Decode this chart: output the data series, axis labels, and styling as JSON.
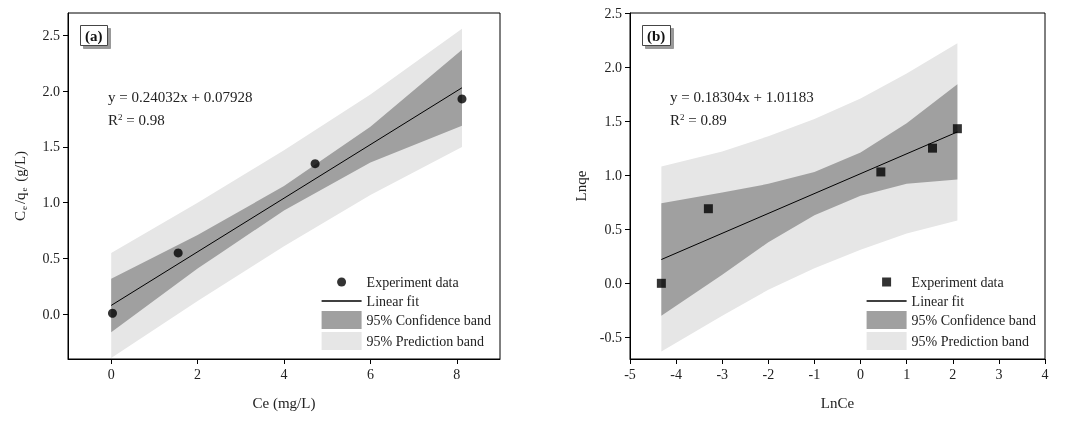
{
  "chart_data": [
    {
      "type": "scatter",
      "title": "(a)",
      "xlabel": "Ce (mg/L)",
      "ylabel": "C$_{e}$/q$_{e}$ (g/L)",
      "xlim": [
        -1,
        9
      ],
      "xticks": [
        0,
        2,
        4,
        6,
        8
      ],
      "ylim": [
        -0.4,
        2.7
      ],
      "yticks": [
        {
          "value": 0,
          "label": "0.0"
        },
        0.5,
        {
          "value": 1,
          "label": "1.0"
        },
        1.5,
        {
          "value": 2,
          "label": "2.0"
        },
        2.5
      ],
      "grid": false,
      "legend": "bottom right",
      "marker": "circle",
      "annotations": [
        "y = 0.24032x + 0.07928",
        "R$^{2}$ = 0.98"
      ],
      "series": [
        {
          "name": "Experiment data",
          "color": "#000000",
          "x": [
            0.03,
            1.55,
            4.72,
            8.12
          ],
          "values": [
            0.01,
            0.55,
            1.35,
            1.93
          ]
        },
        {
          "name": "Linear fit",
          "type": "line",
          "marker": "none",
          "color": "#000000",
          "x": [
            0,
            8.12
          ],
          "values": [
            0.08,
            2.03
          ]
        },
        {
          "name": "95% Confidence band",
          "type": "line",
          "marker": "none",
          "color": "#a0a0a0",
          "x": [
            0,
            2,
            4,
            6,
            8.12
          ],
          "values": [
            null,
            null,
            null,
            null,
            null
          ],
          "lower": [
            -0.16,
            0.41,
            0.93,
            1.36,
            1.69
          ],
          "upper": [
            0.32,
            0.71,
            1.15,
            1.68,
            2.37
          ]
        },
        {
          "name": "95% Prediction band",
          "type": "line",
          "marker": "none",
          "color": "#e6e6e6",
          "x": [
            0,
            2,
            4,
            6,
            8.12
          ],
          "values": [
            null,
            null,
            null,
            null,
            null
          ],
          "lower": [
            -0.39,
            0.12,
            0.61,
            1.07,
            1.5
          ],
          "upper": [
            0.55,
            1.0,
            1.47,
            1.97,
            2.56
          ]
        }
      ]
    },
    {
      "type": "scatter",
      "title": "(b)",
      "xlabel": "LnCe",
      "ylabel": "Lnqe",
      "xlim": [
        -5,
        4
      ],
      "xticks": [
        -5,
        -4,
        -3,
        -2,
        -1,
        0,
        1,
        2,
        3,
        4
      ],
      "ylim": [
        -0.7,
        2.5
      ],
      "yticks": [
        -0.5,
        {
          "value": 0,
          "label": "0.0"
        },
        0.5,
        {
          "value": 1,
          "label": "1.0"
        },
        1.5,
        {
          "value": 2,
          "label": "2.0"
        },
        2.5
      ],
      "grid": false,
      "legend": "bottom right",
      "marker": "square",
      "annotations": [
        "y = 0.18304x + 1.01183",
        "R$^{2}$ = 0.89"
      ],
      "series": [
        {
          "name": "Experiment data",
          "color": "#000000",
          "x": [
            -4.32,
            -3.3,
            0.44,
            1.56,
            2.1
          ],
          "values": [
            0.0,
            0.69,
            1.03,
            1.25,
            1.43
          ]
        },
        {
          "name": "Linear fit",
          "type": "line",
          "marker": "none",
          "color": "#000000",
          "x": [
            -4.32,
            2.1
          ],
          "values": [
            0.22,
            1.4
          ]
        },
        {
          "name": "95% Confidence band",
          "type": "line",
          "marker": "none",
          "color": "#a0a0a0",
          "x": [
            -4.32,
            -3,
            -2,
            -1,
            0,
            1,
            2.1
          ],
          "values": [
            null,
            null,
            null,
            null,
            null,
            null,
            null
          ],
          "lower": [
            -0.3,
            0.08,
            0.38,
            0.63,
            0.81,
            0.92,
            0.96
          ],
          "upper": [
            0.74,
            0.84,
            0.92,
            1.03,
            1.21,
            1.48,
            1.84
          ]
        },
        {
          "name": "95% Prediction band",
          "type": "line",
          "marker": "none",
          "color": "#e6e6e6",
          "x": [
            -4.32,
            -3,
            -2,
            -1,
            0,
            1,
            2.1
          ],
          "values": [
            null,
            null,
            null,
            null,
            null,
            null,
            null
          ],
          "lower": [
            -0.63,
            -0.3,
            -0.06,
            0.14,
            0.31,
            0.46,
            0.58
          ],
          "upper": [
            1.08,
            1.22,
            1.36,
            1.52,
            1.71,
            1.94,
            2.22
          ]
        }
      ]
    }
  ]
}
